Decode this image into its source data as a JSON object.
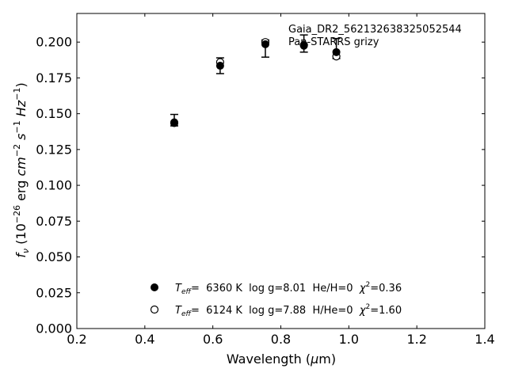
{
  "chart_data": {
    "type": "scatter",
    "title": "",
    "xlabel": "Wavelength (μm)",
    "ylabel": "f_ν (10^−26 erg cm^−2 s^−1 Hz^−1)",
    "xlim": [
      0.2,
      1.4
    ],
    "ylim": [
      0.0,
      0.22
    ],
    "x_ticks": [
      0.2,
      0.4,
      0.6,
      0.8,
      1.0,
      1.2,
      1.4
    ],
    "x_tick_labels": [
      "0.2",
      "0.4",
      "0.6",
      "0.8",
      "1.0",
      "1.2",
      "1.4"
    ],
    "y_ticks": [
      0.0,
      0.025,
      0.05,
      0.075,
      0.1,
      0.125,
      0.15,
      0.175,
      0.2
    ],
    "y_tick_labels": [
      "0.000",
      "0.025",
      "0.050",
      "0.075",
      "0.100",
      "0.125",
      "0.150",
      "0.175",
      "0.200"
    ],
    "annotations": [
      "Gaia_DR2_562132638325052544",
      "Pan-STARRS grizy"
    ],
    "grid": false,
    "legend_position": "lower-center",
    "observed": {
      "x": [
        0.4866,
        0.6215,
        0.7545,
        0.8679,
        0.9633
      ],
      "y": [
        0.1455,
        0.1835,
        0.1955,
        0.199,
        0.1955
      ],
      "yerr": [
        0.004,
        0.0055,
        0.006,
        0.006,
        0.007
      ]
    },
    "series": [
      {
        "name": "T_eff= 6360 K log g=8.01 He/H=0 χ²=0.36",
        "marker": "filled-circle",
        "x": [
          0.4866,
          0.6215,
          0.7545,
          0.8679,
          0.9633
        ],
        "y": [
          0.144,
          0.1835,
          0.1985,
          0.1975,
          0.193
        ]
      },
      {
        "name": "T_eff= 6124 K log g=7.88 H/He=0 χ²=1.60",
        "marker": "open-circle",
        "x": [
          0.4866,
          0.6215,
          0.7545,
          0.8679,
          0.9633
        ],
        "y": [
          0.1435,
          0.186,
          0.2,
          0.198,
          0.19
        ]
      }
    ],
    "legend": [
      {
        "teff_label": "T",
        "teff_sub": "eff",
        "rest": "=  6360 K  log g=8.01  He/H=0  ",
        "chi_label": "χ",
        "chi_sup": "2",
        "chi_val": "=0.36"
      },
      {
        "teff_label": "T",
        "teff_sub": "eff",
        "rest": "=  6124 K  log g=7.88  H/He=0  ",
        "chi_label": "χ",
        "chi_sup": "2",
        "chi_val": "=1.60"
      }
    ]
  },
  "axis_text": {
    "xlabel_main": "Wavelength (",
    "xlabel_mu": "μ",
    "xlabel_unit": "m)",
    "ylabel_f": "f",
    "ylabel_nu": "ν",
    "ylabel_open": " (10",
    "ylabel_exp1": "−26",
    "ylabel_erg": " erg ",
    "ylabel_cm": "cm",
    "ylabel_exp2": "−2",
    "ylabel_s": " s",
    "ylabel_exp3": "−1",
    "ylabel_hz": " Hz",
    "ylabel_exp4": "−1",
    "ylabel_close": ")"
  }
}
